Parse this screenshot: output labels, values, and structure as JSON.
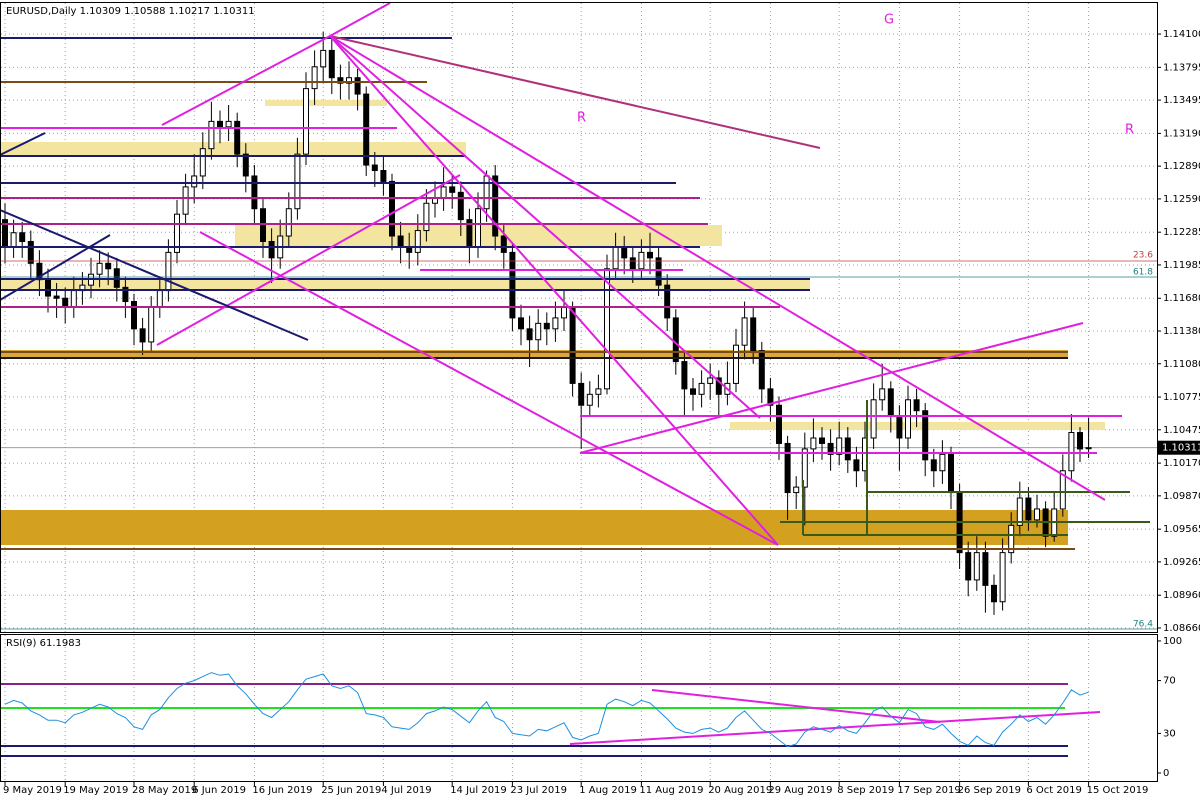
{
  "chart_data": [
    {
      "type": "candlestick",
      "title": "EURUSD,Daily  1.10309 1.10588 1.10217 1.10311",
      "categories": [
        "9 May 2019",
        null,
        null,
        null,
        null,
        null,
        null,
        "19 May 2019",
        null,
        null,
        null,
        null,
        null,
        null,
        null,
        "28 May 2019",
        null,
        null,
        null,
        null,
        null,
        null,
        "6 Jun 2019",
        null,
        null,
        null,
        null,
        null,
        null,
        "16 Jun 2019",
        null,
        null,
        null,
        null,
        null,
        null,
        null,
        "25 Jun 2019",
        null,
        null,
        null,
        null,
        null,
        null,
        "4 Jul 2019",
        null,
        null,
        null,
        null,
        null,
        null,
        null,
        "14 Jul 2019",
        null,
        null,
        null,
        null,
        null,
        null,
        "23 Jul 2019",
        null,
        null,
        null,
        null,
        null,
        null,
        null,
        "1 Aug 2019",
        null,
        null,
        null,
        null,
        null,
        null,
        "11 Aug 2019",
        null,
        null,
        null,
        null,
        null,
        null,
        null,
        "20 Aug 2019",
        null,
        null,
        null,
        null,
        null,
        null,
        "29 Aug 2019",
        null,
        null,
        null,
        null,
        null,
        null,
        null,
        "8 Sep 2019",
        null,
        null,
        null,
        null,
        null,
        null,
        "17 Sep 2019",
        null,
        null,
        null,
        null,
        null,
        null,
        "26 Sep 2019",
        null,
        null,
        null,
        null,
        null,
        null,
        null,
        "6 Oct 2019",
        null,
        null,
        null,
        null,
        null,
        null,
        "15 Oct 2019"
      ],
      "open": [
        1.124,
        1.1215,
        1.1228,
        1.122,
        1.12,
        1.1185,
        1.117,
        1.1168,
        1.116,
        1.1175,
        1.118,
        1.119,
        1.12,
        1.1195,
        1.1178,
        1.1165,
        1.114,
        1.1128,
        1.116,
        1.1175,
        1.121,
        1.1245,
        1.127,
        1.128,
        1.1305,
        1.133,
        1.1325,
        1.133,
        1.13,
        1.128,
        1.125,
        1.122,
        1.1205,
        1.1225,
        1.125,
        1.13,
        1.136,
        1.138,
        1.1395,
        1.137,
        1.1365,
        1.137,
        1.1355,
        1.129,
        1.1285,
        1.1275,
        1.1225,
        1.1215,
        1.121,
        1.123,
        1.1255,
        1.126,
        1.127,
        1.1265,
        1.124,
        1.1215,
        1.125,
        1.128,
        1.1225,
        1.121,
        1.115,
        1.114,
        1.113,
        1.1145,
        1.114,
        1.115,
        1.116,
        1.109,
        1.107,
        1.108,
        1.1085,
        1.1195,
        1.1215,
        1.1205,
        1.1195,
        1.121,
        1.1205,
        1.118,
        1.115,
        1.111,
        1.1085,
        1.108,
        1.109,
        1.1095,
        1.108,
        1.109,
        1.1125,
        1.115,
        1.112,
        1.1085,
        1.107,
        1.1035,
        1.099,
        1.0995,
        1.103,
        1.104,
        1.1035,
        1.1025,
        1.104,
        1.102,
        1.101,
        1.104,
        1.1075,
        1.1085,
        1.106,
        1.104,
        1.1075,
        1.1065,
        1.102,
        1.101,
        1.1025,
        1.099,
        1.0935,
        1.091,
        1.0935,
        1.0905,
        1.089,
        1.0935,
        1.096,
        1.0985,
        1.0965,
        1.0975,
        1.095,
        1.0975,
        1.101,
        1.1045,
        1.10309
      ],
      "high": [
        1.1255,
        1.124,
        1.1238,
        1.123,
        1.1212,
        1.1195,
        1.1182,
        1.1178,
        1.1188,
        1.1192,
        1.1205,
        1.1212,
        1.121,
        1.1205,
        1.1188,
        1.1172,
        1.115,
        1.117,
        1.1188,
        1.1222,
        1.1258,
        1.1282,
        1.13,
        1.132,
        1.1348,
        1.134,
        1.1345,
        1.1338,
        1.131,
        1.129,
        1.126,
        1.1232,
        1.124,
        1.1265,
        1.1315,
        1.1375,
        1.1395,
        1.1412,
        1.1408,
        1.1382,
        1.1385,
        1.1378,
        1.1362,
        1.1302,
        1.1298,
        1.1282,
        1.1238,
        1.1228,
        1.1245,
        1.1268,
        1.1275,
        1.1288,
        1.1282,
        1.1275,
        1.125,
        1.1265,
        1.1285,
        1.129,
        1.1235,
        1.1218,
        1.1162,
        1.1152,
        1.1158,
        1.1155,
        1.1165,
        1.1175,
        1.1165,
        1.11,
        1.1092,
        1.1098,
        1.1208,
        1.1228,
        1.1225,
        1.1215,
        1.1222,
        1.1228,
        1.1215,
        1.119,
        1.1158,
        1.112,
        1.1095,
        1.1102,
        1.1108,
        1.1102,
        1.111,
        1.114,
        1.1165,
        1.116,
        1.1128,
        1.1095,
        1.1078,
        1.1042,
        1.1005,
        1.1045,
        1.1058,
        1.105,
        1.1048,
        1.1055,
        1.105,
        1.1032,
        1.1055,
        1.109,
        1.1108,
        1.1092,
        1.107,
        1.1088,
        1.1085,
        1.1072,
        1.103,
        1.1038,
        1.1032,
        1.0998,
        1.0945,
        1.095,
        1.0945,
        1.0915,
        1.0948,
        1.0972,
        1.1,
        1.0995,
        1.0988,
        1.0982,
        1.099,
        1.1025,
        1.1062,
        1.105,
        1.10588
      ],
      "low": [
        1.12,
        1.1205,
        1.1205,
        1.1185,
        1.117,
        1.1155,
        1.115,
        1.1145,
        1.115,
        1.1162,
        1.1168,
        1.1178,
        1.118,
        1.1165,
        1.115,
        1.1125,
        1.1116,
        1.112,
        1.115,
        1.1165,
        1.12,
        1.1235,
        1.1255,
        1.1268,
        1.1295,
        1.131,
        1.1312,
        1.1288,
        1.1265,
        1.1235,
        1.1205,
        1.1182,
        1.1195,
        1.1215,
        1.124,
        1.129,
        1.1345,
        1.1365,
        1.1355,
        1.135,
        1.135,
        1.134,
        1.128,
        1.127,
        1.1262,
        1.1212,
        1.12,
        1.1195,
        1.1198,
        1.122,
        1.1242,
        1.1248,
        1.125,
        1.1225,
        1.12,
        1.1205,
        1.1238,
        1.1212,
        1.1195,
        1.1138,
        1.1125,
        1.1105,
        1.1118,
        1.1125,
        1.1128,
        1.1138,
        1.1078,
        1.103,
        1.106,
        1.1068,
        1.108,
        1.1185,
        1.119,
        1.1182,
        1.1185,
        1.119,
        1.117,
        1.1138,
        1.1098,
        1.106,
        1.1065,
        1.1068,
        1.1075,
        1.106,
        1.107,
        1.1082,
        1.1112,
        1.1108,
        1.1072,
        1.1055,
        1.102,
        1.0965,
        1.0975,
        1.096,
        1.1018,
        1.102,
        1.101,
        1.1015,
        1.1008,
        1.0995,
        1.1,
        1.103,
        1.1065,
        1.1045,
        1.101,
        1.103,
        1.105,
        1.1005,
        1.0995,
        1.0998,
        1.0975,
        1.092,
        1.0895,
        1.09,
        1.088,
        1.0878,
        1.0882,
        1.0925,
        1.095,
        1.0955,
        1.0958,
        1.094,
        1.0945,
        1.0968,
        1.1,
        1.1018,
        1.10217
      ],
      "close": [
        1.1215,
        1.1228,
        1.122,
        1.12,
        1.1185,
        1.117,
        1.1168,
        1.116,
        1.1175,
        1.118,
        1.119,
        1.12,
        1.1195,
        1.1178,
        1.1165,
        1.114,
        1.1128,
        1.116,
        1.1175,
        1.121,
        1.1245,
        1.127,
        1.128,
        1.1305,
        1.133,
        1.1325,
        1.133,
        1.13,
        1.128,
        1.125,
        1.122,
        1.1205,
        1.1225,
        1.125,
        1.13,
        1.136,
        1.138,
        1.1395,
        1.137,
        1.1365,
        1.137,
        1.1355,
        1.129,
        1.1285,
        1.1275,
        1.1225,
        1.1215,
        1.121,
        1.123,
        1.1255,
        1.126,
        1.127,
        1.1265,
        1.124,
        1.1215,
        1.125,
        1.128,
        1.1225,
        1.121,
        1.115,
        1.114,
        1.113,
        1.1145,
        1.114,
        1.115,
        1.116,
        1.109,
        1.107,
        1.108,
        1.1085,
        1.1195,
        1.1215,
        1.1205,
        1.1195,
        1.121,
        1.1205,
        1.118,
        1.115,
        1.111,
        1.1085,
        1.108,
        1.109,
        1.1095,
        1.108,
        1.109,
        1.1125,
        1.115,
        1.112,
        1.1085,
        1.107,
        1.1035,
        1.099,
        1.0995,
        1.103,
        1.104,
        1.1035,
        1.1025,
        1.104,
        1.102,
        1.101,
        1.104,
        1.1075,
        1.1085,
        1.106,
        1.104,
        1.1075,
        1.1065,
        1.102,
        1.101,
        1.1025,
        1.099,
        1.0935,
        1.091,
        1.0935,
        1.0905,
        1.089,
        1.0935,
        1.096,
        1.0985,
        1.0965,
        1.0975,
        1.095,
        1.0975,
        1.101,
        1.1045,
        1.103,
        1.10311
      ],
      "last_label": "1.10311",
      "ylim": [
        1.08623,
        1.14366
      ],
      "yticks": [
        {
          "value": 1.141,
          "label": "1.14100"
        },
        {
          "value": 1.13795,
          "label": "1.13795"
        },
        {
          "value": 1.13495,
          "label": "1.13495"
        },
        {
          "value": 1.1319,
          "label": "1.13190"
        },
        {
          "value": 1.1289,
          "label": "1.12890"
        },
        {
          "value": 1.1259,
          "label": "1.12590"
        },
        {
          "value": 1.12285,
          "label": "1.12285"
        },
        {
          "value": 1.11985,
          "label": "1.11985"
        },
        {
          "value": 1.1168,
          "label": "1.11680"
        },
        {
          "value": 1.1138,
          "label": "1.11380"
        },
        {
          "value": 1.1108,
          "label": "1.11080"
        },
        {
          "value": 1.10775,
          "label": "1.10775"
        },
        {
          "value": 1.10475,
          "label": "1.10475"
        },
        {
          "value": 1.1017,
          "label": "1.10170"
        },
        {
          "value": 1.0987,
          "label": "1.09870"
        },
        {
          "value": 1.09565,
          "label": "1.09565"
        },
        {
          "value": 1.09265,
          "label": "1.09265"
        },
        {
          "value": 1.0896,
          "label": "1.08960"
        },
        {
          "value": 1.0866,
          "label": "1.08660"
        }
      ],
      "grid": true,
      "annotations": [
        "G",
        "R",
        "R",
        "23.6",
        "61.8",
        "76.4"
      ]
    },
    {
      "type": "line",
      "title": "RSI(9) 61.1983",
      "color": "#1e8fe0",
      "values": [
        52,
        55,
        53,
        47,
        44,
        40,
        40,
        38,
        44,
        46,
        49,
        52,
        50,
        45,
        42,
        35,
        33,
        44,
        48,
        57,
        64,
        68,
        70,
        73,
        76,
        74,
        75,
        66,
        60,
        52,
        45,
        42,
        48,
        54,
        63,
        71,
        73,
        75,
        66,
        64,
        66,
        61,
        45,
        44,
        42,
        35,
        34,
        33,
        38,
        45,
        47,
        50,
        48,
        43,
        38,
        47,
        54,
        42,
        39,
        30,
        29,
        28,
        33,
        32,
        35,
        38,
        27,
        25,
        28,
        30,
        52,
        56,
        54,
        51,
        55,
        53,
        47,
        41,
        34,
        31,
        30,
        33,
        34,
        31,
        34,
        42,
        47,
        40,
        33,
        30,
        25,
        20,
        22,
        31,
        35,
        33,
        31,
        36,
        32,
        30,
        38,
        47,
        50,
        43,
        38,
        48,
        45,
        35,
        33,
        37,
        30,
        24,
        21,
        28,
        23,
        21,
        31,
        37,
        44,
        39,
        42,
        37,
        44,
        53,
        63,
        59,
        61.1983
      ],
      "ylim": [
        -6.8,
        104.5
      ],
      "yticks": [
        100,
        70,
        30,
        0
      ]
    }
  ]
}
